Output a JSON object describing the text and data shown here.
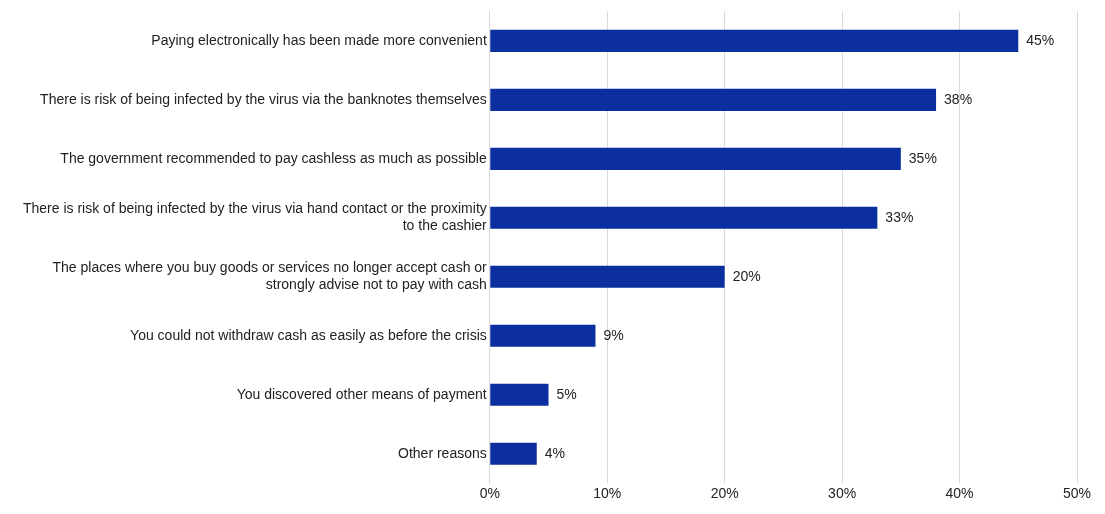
{
  "chart_data": {
    "type": "bar",
    "orientation": "horizontal",
    "categories": [
      "Paying electronically has been made more convenient",
      "There is risk of being infected by the virus via the banknotes themselves",
      "The government recommended to pay cashless as much as possible",
      "There is risk of being infected by the virus via hand contact or the proximity to the cashier",
      "The places where you buy goods or services no longer accept cash or strongly advise not to pay with cash",
      "You could not withdraw cash as easily as before the crisis",
      "You discovered other means of payment",
      "Other reasons"
    ],
    "values": [
      45,
      38,
      35,
      33,
      20,
      9,
      5,
      4
    ],
    "value_labels": [
      "45%",
      "38%",
      "35%",
      "33%",
      "20%",
      "9%",
      "5%",
      "4%"
    ],
    "color": "#0b2f9e",
    "xlim": [
      0,
      50
    ],
    "xticks": [
      {
        "value": 0,
        "label": "0%"
      },
      {
        "value": 10,
        "label": "10%"
      },
      {
        "value": 20,
        "label": "20%"
      },
      {
        "value": 30,
        "label": "30%"
      },
      {
        "value": 40,
        "label": "40%"
      },
      {
        "value": 50,
        "label": "50%"
      }
    ],
    "grid": "x"
  }
}
